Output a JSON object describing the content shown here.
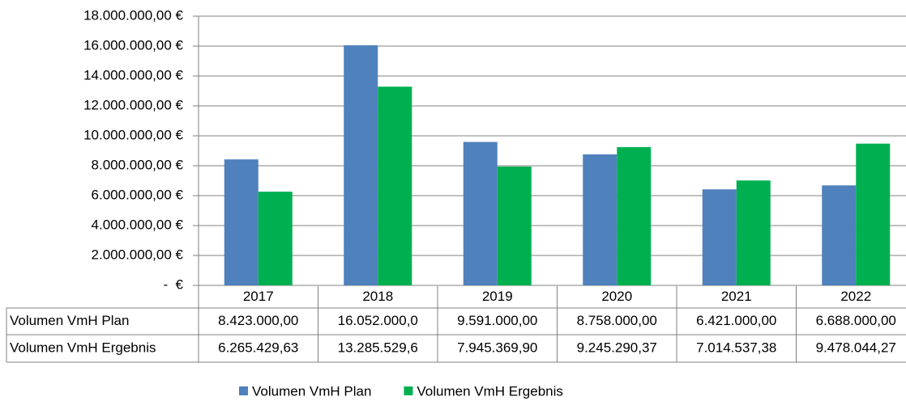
{
  "chart_data": {
    "type": "bar",
    "categories": [
      "2017",
      "2018",
      "2019",
      "2020",
      "2021",
      "2022"
    ],
    "series": [
      {
        "name": "Volumen VmH Plan",
        "color": "#4f81bd",
        "values": [
          8423000,
          16052000,
          9591000,
          8758000,
          6421000,
          6688000
        ],
        "value_labels": [
          "8.423.000,00",
          "16.052.000,0",
          "9.591.000,00",
          "8.758.000,00",
          "6.421.000,00",
          "6.688.000,00"
        ]
      },
      {
        "name": "Volumen VmH Ergebnis",
        "color": "#00b050",
        "values": [
          6265429.63,
          13285529.6,
          7945369.9,
          9245290.37,
          7014537.38,
          9478044.27
        ],
        "value_labels": [
          "6.265.429,63",
          "13.285.529,6",
          "7.945.369,90",
          "9.245.290,37",
          "7.014.537,38",
          "9.478.044,27"
        ]
      }
    ],
    "ylim": [
      0,
      18000000
    ],
    "yticks": [
      {
        "value": 0,
        "label": "-  €"
      },
      {
        "value": 2000000,
        "label": "2.000.000,00 €"
      },
      {
        "value": 4000000,
        "label": "4.000.000,00 €"
      },
      {
        "value": 6000000,
        "label": "6.000.000,00 €"
      },
      {
        "value": 8000000,
        "label": "8.000.000,00 €"
      },
      {
        "value": 10000000,
        "label": "10.000.000,00 €"
      },
      {
        "value": 12000000,
        "label": "12.000.000,00 €"
      },
      {
        "value": 14000000,
        "label": "14.000.000,00 €"
      },
      {
        "value": 16000000,
        "label": "16.000.000,00 €"
      },
      {
        "value": 18000000,
        "label": "18.000.000,00 €"
      }
    ],
    "grid": true,
    "legend": "bottom"
  }
}
